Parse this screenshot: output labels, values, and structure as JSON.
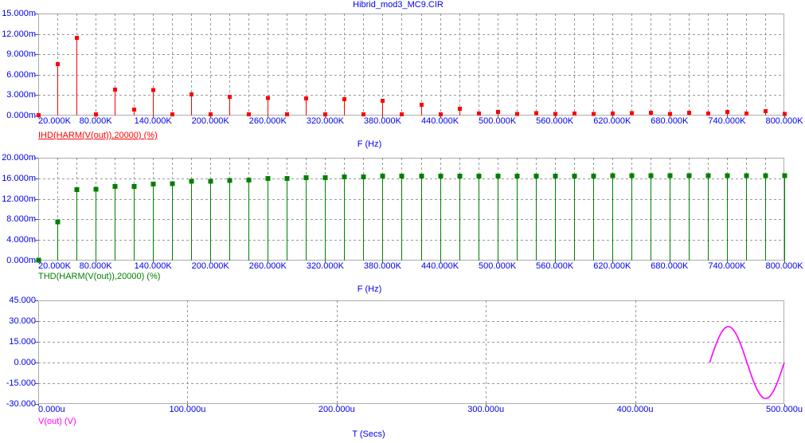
{
  "window": {
    "title": "Hibrid_mod3_MC9.CIR"
  },
  "colors": {
    "background": "#ffffff",
    "axis_text": "#0000ee",
    "grid": "#999999",
    "border": "#5a5a5a",
    "ihd": "#ff0000",
    "thd": "#008000",
    "vout": "#ff00ff"
  },
  "chart_data": [
    {
      "type": "stem",
      "series_label": "IHD(HARM(V(out)),20000) (%)",
      "selected": true,
      "color_key": "ihd",
      "xlabel": "F (Hz)",
      "xlim": [
        20,
        800
      ],
      "x_unit": "kHz",
      "x_grid_step": 20,
      "x_ticks": {
        "values": [
          20,
          80,
          140,
          200,
          260,
          320,
          380,
          440,
          500,
          560,
          620,
          680,
          740,
          800
        ],
        "labels": [
          "20.000K",
          "80.000K",
          "140.000K",
          "200.000K",
          "260.000K",
          "320.000K",
          "380.000K",
          "440.000K",
          "500.000K",
          "560.000K",
          "620.000K",
          "680.000K",
          "740.000K",
          "800.000K"
        ]
      },
      "ylim": [
        0,
        15
      ],
      "y_unit": "milli-percent",
      "y_ticks": {
        "values": [
          0,
          3,
          6,
          9,
          12,
          15
        ],
        "labels": [
          "0.000m",
          "3.000m",
          "6.000m",
          "9.000m",
          "12.000m",
          "15.000m"
        ]
      },
      "x": [
        20,
        40,
        60,
        80,
        100,
        120,
        140,
        160,
        180,
        200,
        220,
        240,
        260,
        280,
        300,
        320,
        340,
        360,
        380,
        400,
        420,
        440,
        460,
        480,
        500,
        520,
        540,
        560,
        580,
        600,
        620,
        640,
        660,
        680,
        700,
        720,
        740,
        760,
        780,
        800
      ],
      "values": [
        0.05,
        7.55,
        11.45,
        0.15,
        3.8,
        0.85,
        3.75,
        0.15,
        3.1,
        0.15,
        2.75,
        0.15,
        2.55,
        0.15,
        2.5,
        0.15,
        2.4,
        0.15,
        2.15,
        0.15,
        1.6,
        0.15,
        1.0,
        0.3,
        0.55,
        0.25,
        0.35,
        0.25,
        0.3,
        0.25,
        0.3,
        0.35,
        0.4,
        0.25,
        0.4,
        0.3,
        0.5,
        0.3,
        0.65,
        0.25
      ]
    },
    {
      "type": "stem",
      "series_label": "THD(HARM(V(out)),20000) (%)",
      "selected": false,
      "color_key": "thd",
      "xlabel": "F (Hz)",
      "xlim": [
        20,
        800
      ],
      "x_unit": "kHz",
      "x_grid_step": 20,
      "x_ticks": {
        "values": [
          20,
          80,
          140,
          200,
          260,
          320,
          380,
          440,
          500,
          560,
          620,
          680,
          740,
          800
        ],
        "labels": [
          "20.000K",
          "80.000K",
          "140.000K",
          "200.000K",
          "260.000K",
          "320.000K",
          "380.000K",
          "440.000K",
          "500.000K",
          "560.000K",
          "620.000K",
          "680.000K",
          "740.000K",
          "800.000K"
        ]
      },
      "ylim": [
        0,
        20
      ],
      "y_unit": "milli-percent",
      "y_ticks": {
        "values": [
          0,
          4,
          8,
          12,
          16,
          20
        ],
        "labels": [
          "0.000m",
          "4.000m",
          "8.000m",
          "12.000m",
          "16.000m",
          "20.000m"
        ]
      },
      "x": [
        20,
        40,
        60,
        80,
        100,
        120,
        140,
        160,
        180,
        200,
        220,
        240,
        260,
        280,
        300,
        320,
        340,
        360,
        380,
        400,
        420,
        440,
        460,
        480,
        500,
        520,
        540,
        560,
        580,
        600,
        620,
        640,
        660,
        680,
        700,
        720,
        740,
        760,
        780,
        800
      ],
      "values": [
        0.05,
        7.5,
        13.8,
        13.85,
        14.4,
        14.45,
        14.9,
        15.0,
        15.4,
        15.45,
        15.6,
        15.65,
        15.95,
        16.0,
        16.1,
        16.1,
        16.3,
        16.3,
        16.4,
        16.4,
        16.4,
        16.4,
        16.45,
        16.45,
        16.45,
        16.45,
        16.45,
        16.45,
        16.45,
        16.45,
        16.5,
        16.5,
        16.5,
        16.5,
        16.5,
        16.5,
        16.5,
        16.5,
        16.55,
        16.55
      ]
    },
    {
      "type": "line",
      "series_label": "V(out) (V)",
      "selected": false,
      "color_key": "vout",
      "xlabel": "T (Secs)",
      "xlim": [
        0,
        500
      ],
      "x_unit": "us",
      "x_ticks": {
        "values": [
          0,
          100,
          200,
          300,
          400,
          500
        ],
        "labels": [
          "0.000u",
          "100.000u",
          "200.000u",
          "300.000u",
          "400.000u",
          "500.000u"
        ]
      },
      "ylim": [
        -30,
        45
      ],
      "y_unit": "V",
      "y_ticks": {
        "values": [
          -30,
          -15,
          0,
          15,
          30,
          45
        ],
        "labels": [
          "-30.000",
          "-15.000",
          "0.000",
          "15.000",
          "30.000",
          "45.000"
        ]
      },
      "wave": {
        "shape": "sine",
        "t_start_us": 450,
        "t_end_us": 500,
        "period_us": 50,
        "amplitude_v": 26,
        "offset_v": 0
      }
    }
  ]
}
